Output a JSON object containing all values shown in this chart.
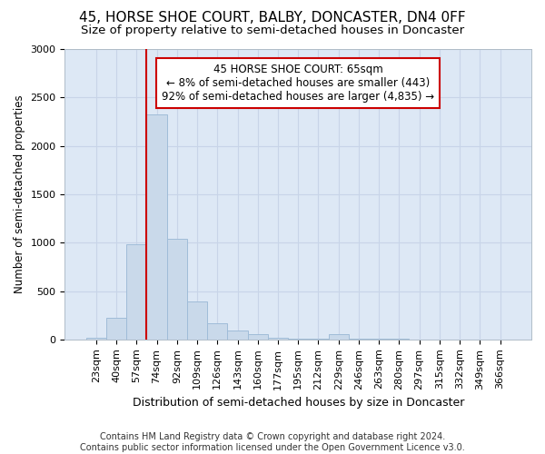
{
  "title1": "45, HORSE SHOE COURT, BALBY, DONCASTER, DN4 0FF",
  "title2": "Size of property relative to semi-detached houses in Doncaster",
  "xlabel": "Distribution of semi-detached houses by size in Doncaster",
  "ylabel": "Number of semi-detached properties",
  "footnote": "Contains HM Land Registry data © Crown copyright and database right 2024.\nContains public sector information licensed under the Open Government Licence v3.0.",
  "categories": [
    "23sqm",
    "40sqm",
    "57sqm",
    "74sqm",
    "92sqm",
    "109sqm",
    "126sqm",
    "143sqm",
    "160sqm",
    "177sqm",
    "195sqm",
    "212sqm",
    "229sqm",
    "246sqm",
    "263sqm",
    "280sqm",
    "297sqm",
    "315sqm",
    "332sqm",
    "349sqm",
    "366sqm"
  ],
  "values": [
    20,
    220,
    980,
    2320,
    1040,
    390,
    165,
    90,
    55,
    15,
    10,
    8,
    50,
    5,
    3,
    3,
    2,
    2,
    2,
    2,
    2
  ],
  "bar_color": "#c9d9ea",
  "bar_edge_color": "#a0bcd8",
  "vline_color": "#cc0000",
  "vline_x": 2.5,
  "annotation_text": "45 HORSE SHOE COURT: 65sqm\n← 8% of semi-detached houses are smaller (443)\n92% of semi-detached houses are larger (4,835) →",
  "annotation_box_color": "#ffffff",
  "annotation_box_edge": "#cc0000",
  "ylim": [
    0,
    3000
  ],
  "yticks": [
    0,
    500,
    1000,
    1500,
    2000,
    2500,
    3000
  ],
  "grid_color": "#c8d4e8",
  "bg_color": "#dde8f5",
  "title1_fontsize": 11,
  "title2_fontsize": 9.5,
  "xlabel_fontsize": 9,
  "ylabel_fontsize": 8.5,
  "tick_fontsize": 8,
  "footnote_fontsize": 7,
  "annot_fontsize": 8.5
}
